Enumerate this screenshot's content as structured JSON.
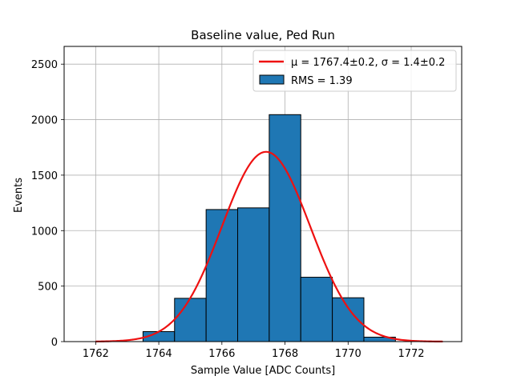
{
  "chart_data": {
    "type": "bar",
    "title": "Baseline value, Ped Run",
    "xlabel": "Sample Value [ADC Counts]",
    "ylabel": "Events",
    "xlim": [
      1761,
      1773.6
    ],
    "ylim": [
      0,
      2660
    ],
    "x_ticks": [
      1762,
      1764,
      1766,
      1768,
      1770,
      1772
    ],
    "y_ticks": [
      0,
      500,
      1000,
      1500,
      2000,
      2500
    ],
    "grid": true,
    "histogram": {
      "name": "RMS = 1.39",
      "bin_width": 1,
      "bins": [
        {
          "left": 1763.5,
          "count": 90
        },
        {
          "left": 1764.5,
          "count": 390
        },
        {
          "left": 1765.5,
          "count": 1190
        },
        {
          "left": 1766.5,
          "count": 1205
        },
        {
          "left": 1767.5,
          "count": 2045
        },
        {
          "left": 1768.5,
          "count": 580
        },
        {
          "left": 1769.5,
          "count": 395
        },
        {
          "left": 1770.5,
          "count": 40
        }
      ],
      "color": "#1f77b4",
      "edgecolor": "#000000"
    },
    "fit": {
      "name": "μ = 1767.4±0.2, σ = 1.4±0.2",
      "mu": 1767.4,
      "sigma": 1.4,
      "amplitude": 1710,
      "x_range": [
        1762,
        1773
      ],
      "color": "#ee1111"
    },
    "legend_position": "top-right",
    "legend": [
      {
        "label": "μ = 1767.4±0.2, σ = 1.4±0.2",
        "kind": "line"
      },
      {
        "label": "RMS = 1.39",
        "kind": "patch"
      }
    ]
  }
}
